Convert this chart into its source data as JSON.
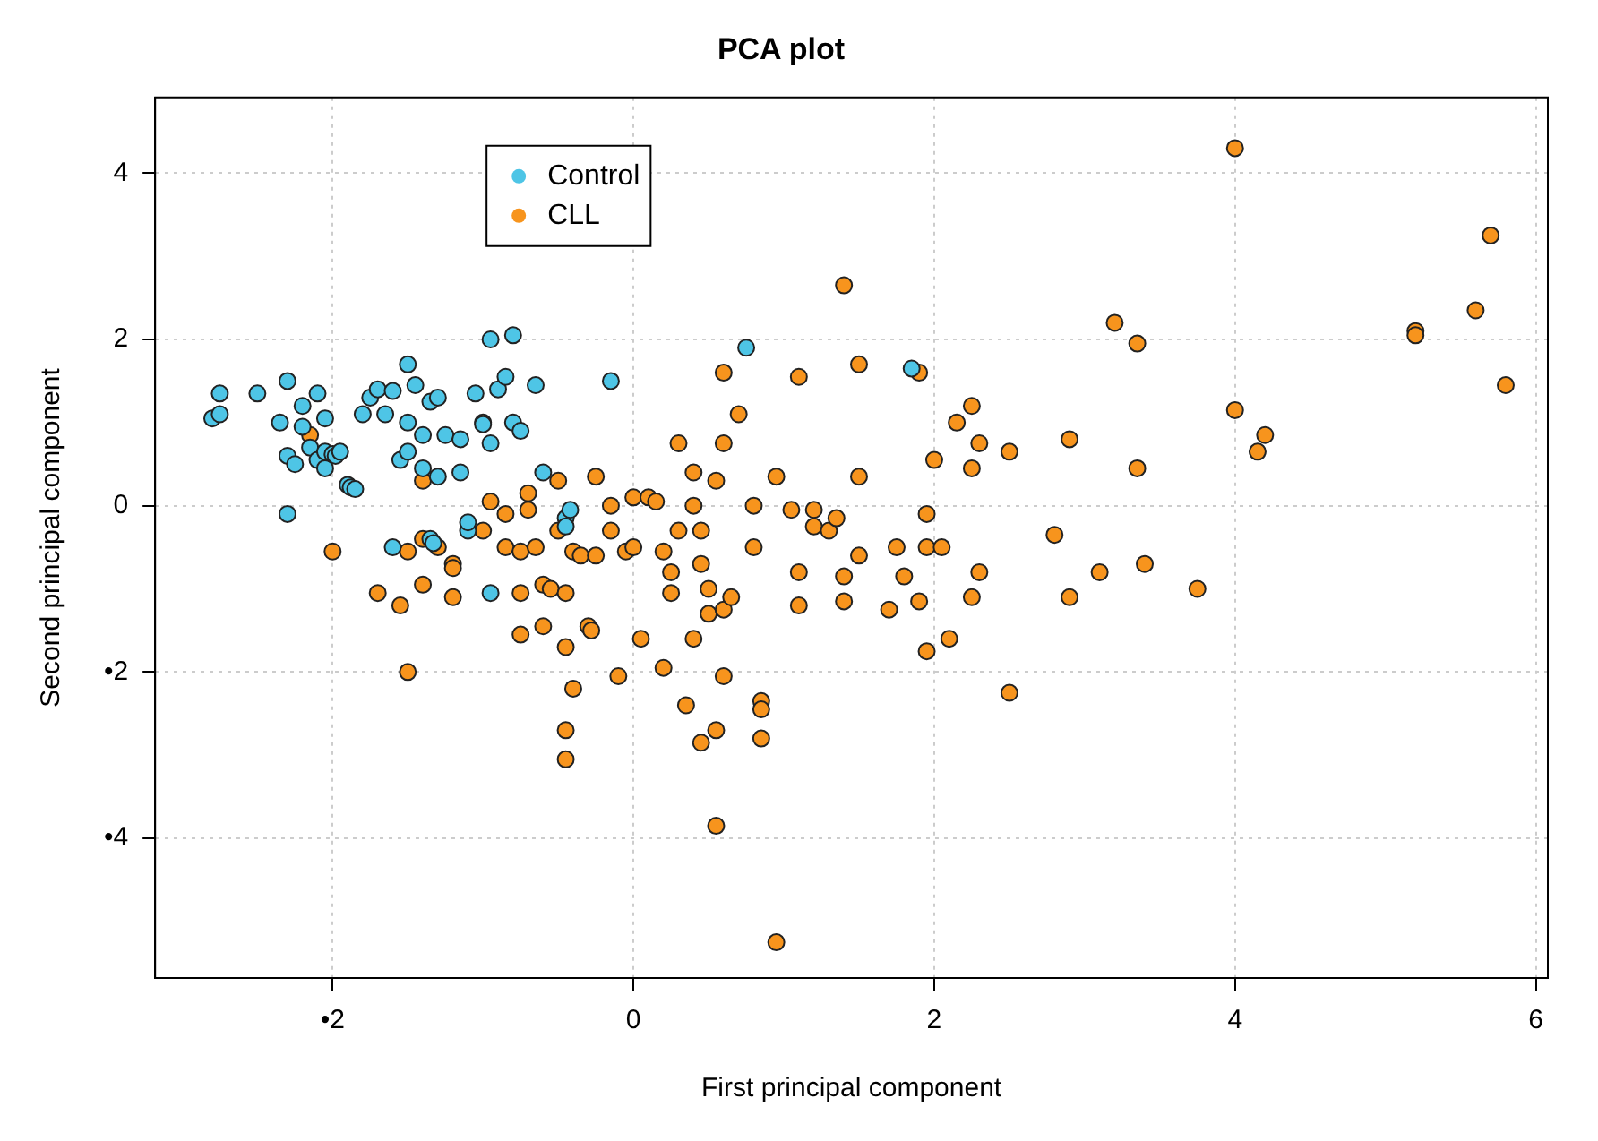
{
  "chart_data": {
    "type": "scatter",
    "title": "PCA plot",
    "xlabel": "First principal component",
    "ylabel": "Second principal component",
    "xlim": [
      -3.18,
      6.08
    ],
    "ylim": [
      -5.68,
      4.91
    ],
    "xticks": [
      {
        "value": -2,
        "label": "•2"
      },
      0,
      2,
      4,
      6
    ],
    "yticks": [
      {
        "value": -4,
        "label": "•4"
      },
      {
        "value": -2,
        "label": "•2"
      },
      0,
      2,
      4
    ],
    "grid": true,
    "legend": "top left",
    "marker": "circle",
    "series": [
      {
        "name": "Control",
        "color": "#4ec5e6",
        "x": [
          -2.8,
          -2.75,
          -2.75,
          -2.5,
          -2.35,
          -2.3,
          -2.25,
          -2.3,
          -2.2,
          -2.15,
          -2.1,
          -2.05,
          -2.1,
          -2.05,
          -2.0,
          -1.98,
          -1.95,
          -2.2,
          -2.05,
          -2.3,
          -1.9,
          -1.88,
          -1.8,
          -1.75,
          -1.7,
          -1.65,
          -1.6,
          -1.55,
          -1.5,
          -1.5,
          -1.5,
          -1.45,
          -1.4,
          -1.4,
          -1.35,
          -1.3,
          -1.35,
          -1.33,
          -1.3,
          -1.25,
          -1.15,
          -1.15,
          -1.1,
          -1.05,
          -1.0,
          -0.95,
          -0.95,
          -0.9,
          -0.85,
          -0.8,
          -0.8,
          -0.75,
          -0.65,
          -0.6,
          -0.45,
          -0.45,
          -0.15,
          0.75,
          1.85,
          -0.95,
          -1.6,
          -1.1,
          -0.42,
          -1.85
        ],
        "values": [
          1.05,
          1.1,
          1.35,
          1.35,
          1.0,
          0.6,
          0.5,
          1.5,
          1.2,
          0.7,
          0.55,
          0.45,
          1.35,
          0.65,
          0.62,
          0.6,
          0.65,
          0.95,
          1.05,
          -0.1,
          0.25,
          0.22,
          1.1,
          1.3,
          1.4,
          1.1,
          1.38,
          0.55,
          0.65,
          1.0,
          1.7,
          1.45,
          0.45,
          0.85,
          1.25,
          1.3,
          -0.4,
          -0.45,
          0.35,
          0.85,
          0.8,
          0.4,
          -0.3,
          1.35,
          0.98,
          0.75,
          2.0,
          1.4,
          1.55,
          2.05,
          1.0,
          0.9,
          1.45,
          0.4,
          -0.15,
          -0.25,
          1.5,
          1.9,
          1.65,
          -1.05,
          -0.5,
          -0.2,
          -0.05,
          0.2
        ]
      },
      {
        "name": "CLL",
        "color": "#f7941d",
        "x": [
          -2.0,
          -2.15,
          -1.7,
          -1.55,
          -1.5,
          -1.5,
          -1.4,
          -1.4,
          -1.3,
          -1.2,
          -1.2,
          -1.2,
          -1.0,
          -1.0,
          -0.95,
          -0.85,
          -0.85,
          -0.75,
          -0.75,
          -0.75,
          -0.7,
          -0.7,
          -0.65,
          -0.6,
          -0.6,
          -0.55,
          -0.5,
          -0.5,
          -0.45,
          -0.45,
          -0.45,
          -0.45,
          -0.4,
          -0.4,
          -0.35,
          -0.3,
          -0.28,
          -0.25,
          -0.25,
          -0.15,
          -0.15,
          -0.1,
          -0.05,
          0.0,
          0.0,
          0.05,
          0.1,
          0.15,
          0.2,
          0.2,
          0.25,
          0.25,
          0.3,
          0.3,
          0.35,
          0.4,
          0.45,
          0.4,
          0.4,
          0.45,
          0.45,
          0.5,
          0.5,
          0.55,
          0.55,
          0.55,
          0.6,
          0.6,
          0.6,
          0.6,
          0.65,
          0.7,
          0.8,
          0.8,
          0.85,
          0.85,
          0.85,
          0.95,
          0.95,
          1.05,
          1.1,
          1.1,
          1.1,
          1.2,
          1.2,
          1.3,
          1.35,
          1.4,
          1.4,
          1.5,
          1.5,
          1.5,
          1.7,
          1.75,
          1.8,
          1.9,
          1.9,
          1.95,
          1.95,
          1.95,
          2.0,
          2.05,
          2.1,
          2.15,
          2.25,
          2.25,
          2.25,
          2.3,
          2.3,
          2.5,
          2.5,
          2.8,
          2.9,
          2.9,
          3.1,
          3.2,
          3.35,
          3.35,
          3.4,
          3.75,
          4.0,
          4.0,
          4.15,
          4.2,
          5.2,
          5.2,
          5.6,
          5.7,
          5.8,
          1.4,
          -1.4
        ],
        "values": [
          -0.55,
          0.85,
          -1.05,
          -1.2,
          -2.0,
          -0.55,
          -0.4,
          0.3,
          -0.5,
          -1.1,
          -0.7,
          -0.75,
          1.0,
          -0.3,
          0.05,
          -0.1,
          -0.5,
          -0.55,
          -1.05,
          -1.55,
          -0.05,
          0.15,
          -0.5,
          -0.95,
          -1.45,
          -1.0,
          0.3,
          -0.3,
          -1.05,
          -1.7,
          -2.7,
          -3.05,
          -2.2,
          -0.55,
          -0.6,
          -1.45,
          -1.5,
          0.35,
          -0.6,
          0.0,
          -0.3,
          -2.05,
          -0.55,
          0.1,
          -0.5,
          -1.6,
          0.1,
          0.05,
          -0.55,
          -1.95,
          -0.8,
          -1.05,
          0.75,
          -0.3,
          -2.4,
          -1.6,
          -2.85,
          0.4,
          0.0,
          -0.3,
          -0.7,
          -1.0,
          -1.3,
          -2.7,
          0.3,
          -3.85,
          0.75,
          -2.05,
          1.6,
          -1.25,
          -1.1,
          1.1,
          -0.5,
          0.0,
          -2.35,
          -2.45,
          -2.8,
          0.35,
          -5.25,
          -0.05,
          1.55,
          -0.8,
          -1.2,
          -0.05,
          -0.25,
          -0.3,
          -0.15,
          2.65,
          -1.15,
          1.7,
          0.35,
          -0.6,
          -1.25,
          -0.5,
          -0.85,
          1.6,
          -1.15,
          -0.1,
          -0.5,
          -1.75,
          0.55,
          -0.5,
          -1.6,
          1.0,
          1.2,
          0.45,
          -1.1,
          0.75,
          -0.8,
          0.65,
          -2.25,
          -0.35,
          0.8,
          -1.1,
          -0.8,
          2.2,
          1.95,
          0.45,
          -0.7,
          -1.0,
          4.3,
          1.15,
          0.65,
          0.85,
          2.1,
          2.05,
          2.35,
          3.25,
          1.45,
          -0.85,
          -0.95
        ]
      }
    ]
  }
}
